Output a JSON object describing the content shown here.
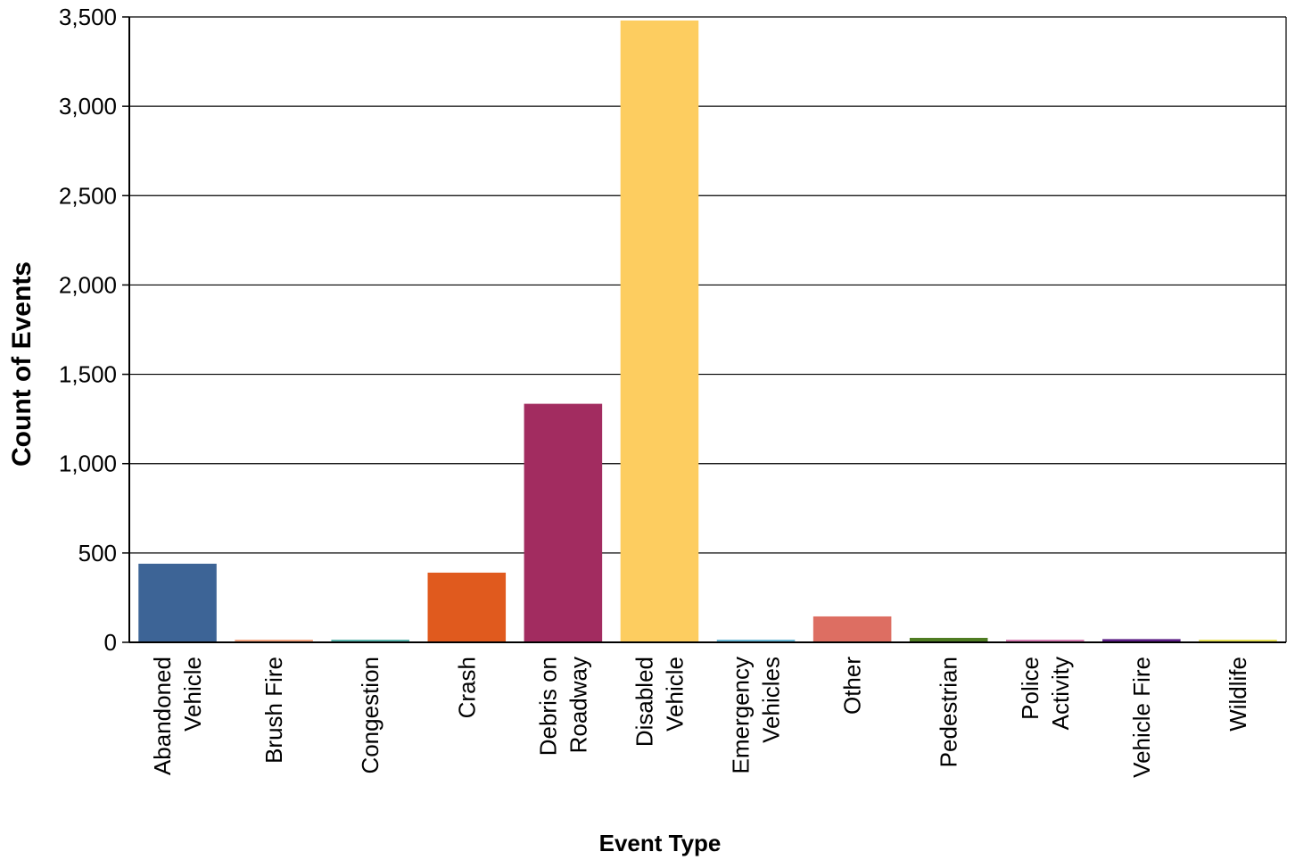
{
  "chart_data": {
    "type": "bar",
    "title": "",
    "xlabel": "Event Type",
    "ylabel": "Count of Events",
    "ylim": [
      0,
      3500
    ],
    "yticks": [
      0,
      500,
      1000,
      1500,
      2000,
      2500,
      3000,
      3500
    ],
    "ytick_labels": [
      "0",
      "500",
      "1,000",
      "1,500",
      "2,000",
      "2,500",
      "3,000",
      "3,500"
    ],
    "grid": true,
    "categories": [
      [
        "Abandoned",
        "Vehicle"
      ],
      [
        "Brush Fire"
      ],
      [
        "Congestion"
      ],
      [
        "Crash"
      ],
      [
        "Debris on",
        "Roadway"
      ],
      [
        "Disabled",
        "Vehicle"
      ],
      [
        "Emergency",
        "Vehicles"
      ],
      [
        "Other"
      ],
      [
        "Pedestrian"
      ],
      [
        "Police",
        "Activity"
      ],
      [
        "Vehicle Fire"
      ],
      [
        "Wildlife"
      ]
    ],
    "values": [
      440,
      10,
      5,
      390,
      1335,
      3480,
      5,
      145,
      25,
      8,
      18,
      12
    ],
    "colors": [
      "#3d6496",
      "#f4a582",
      "#5ab4ac",
      "#e05a1e",
      "#a22c60",
      "#fdcd60",
      "#6bb8d6",
      "#dd6e62",
      "#4f7c23",
      "#d77fb4",
      "#5d1f87",
      "#e6e05a"
    ]
  }
}
